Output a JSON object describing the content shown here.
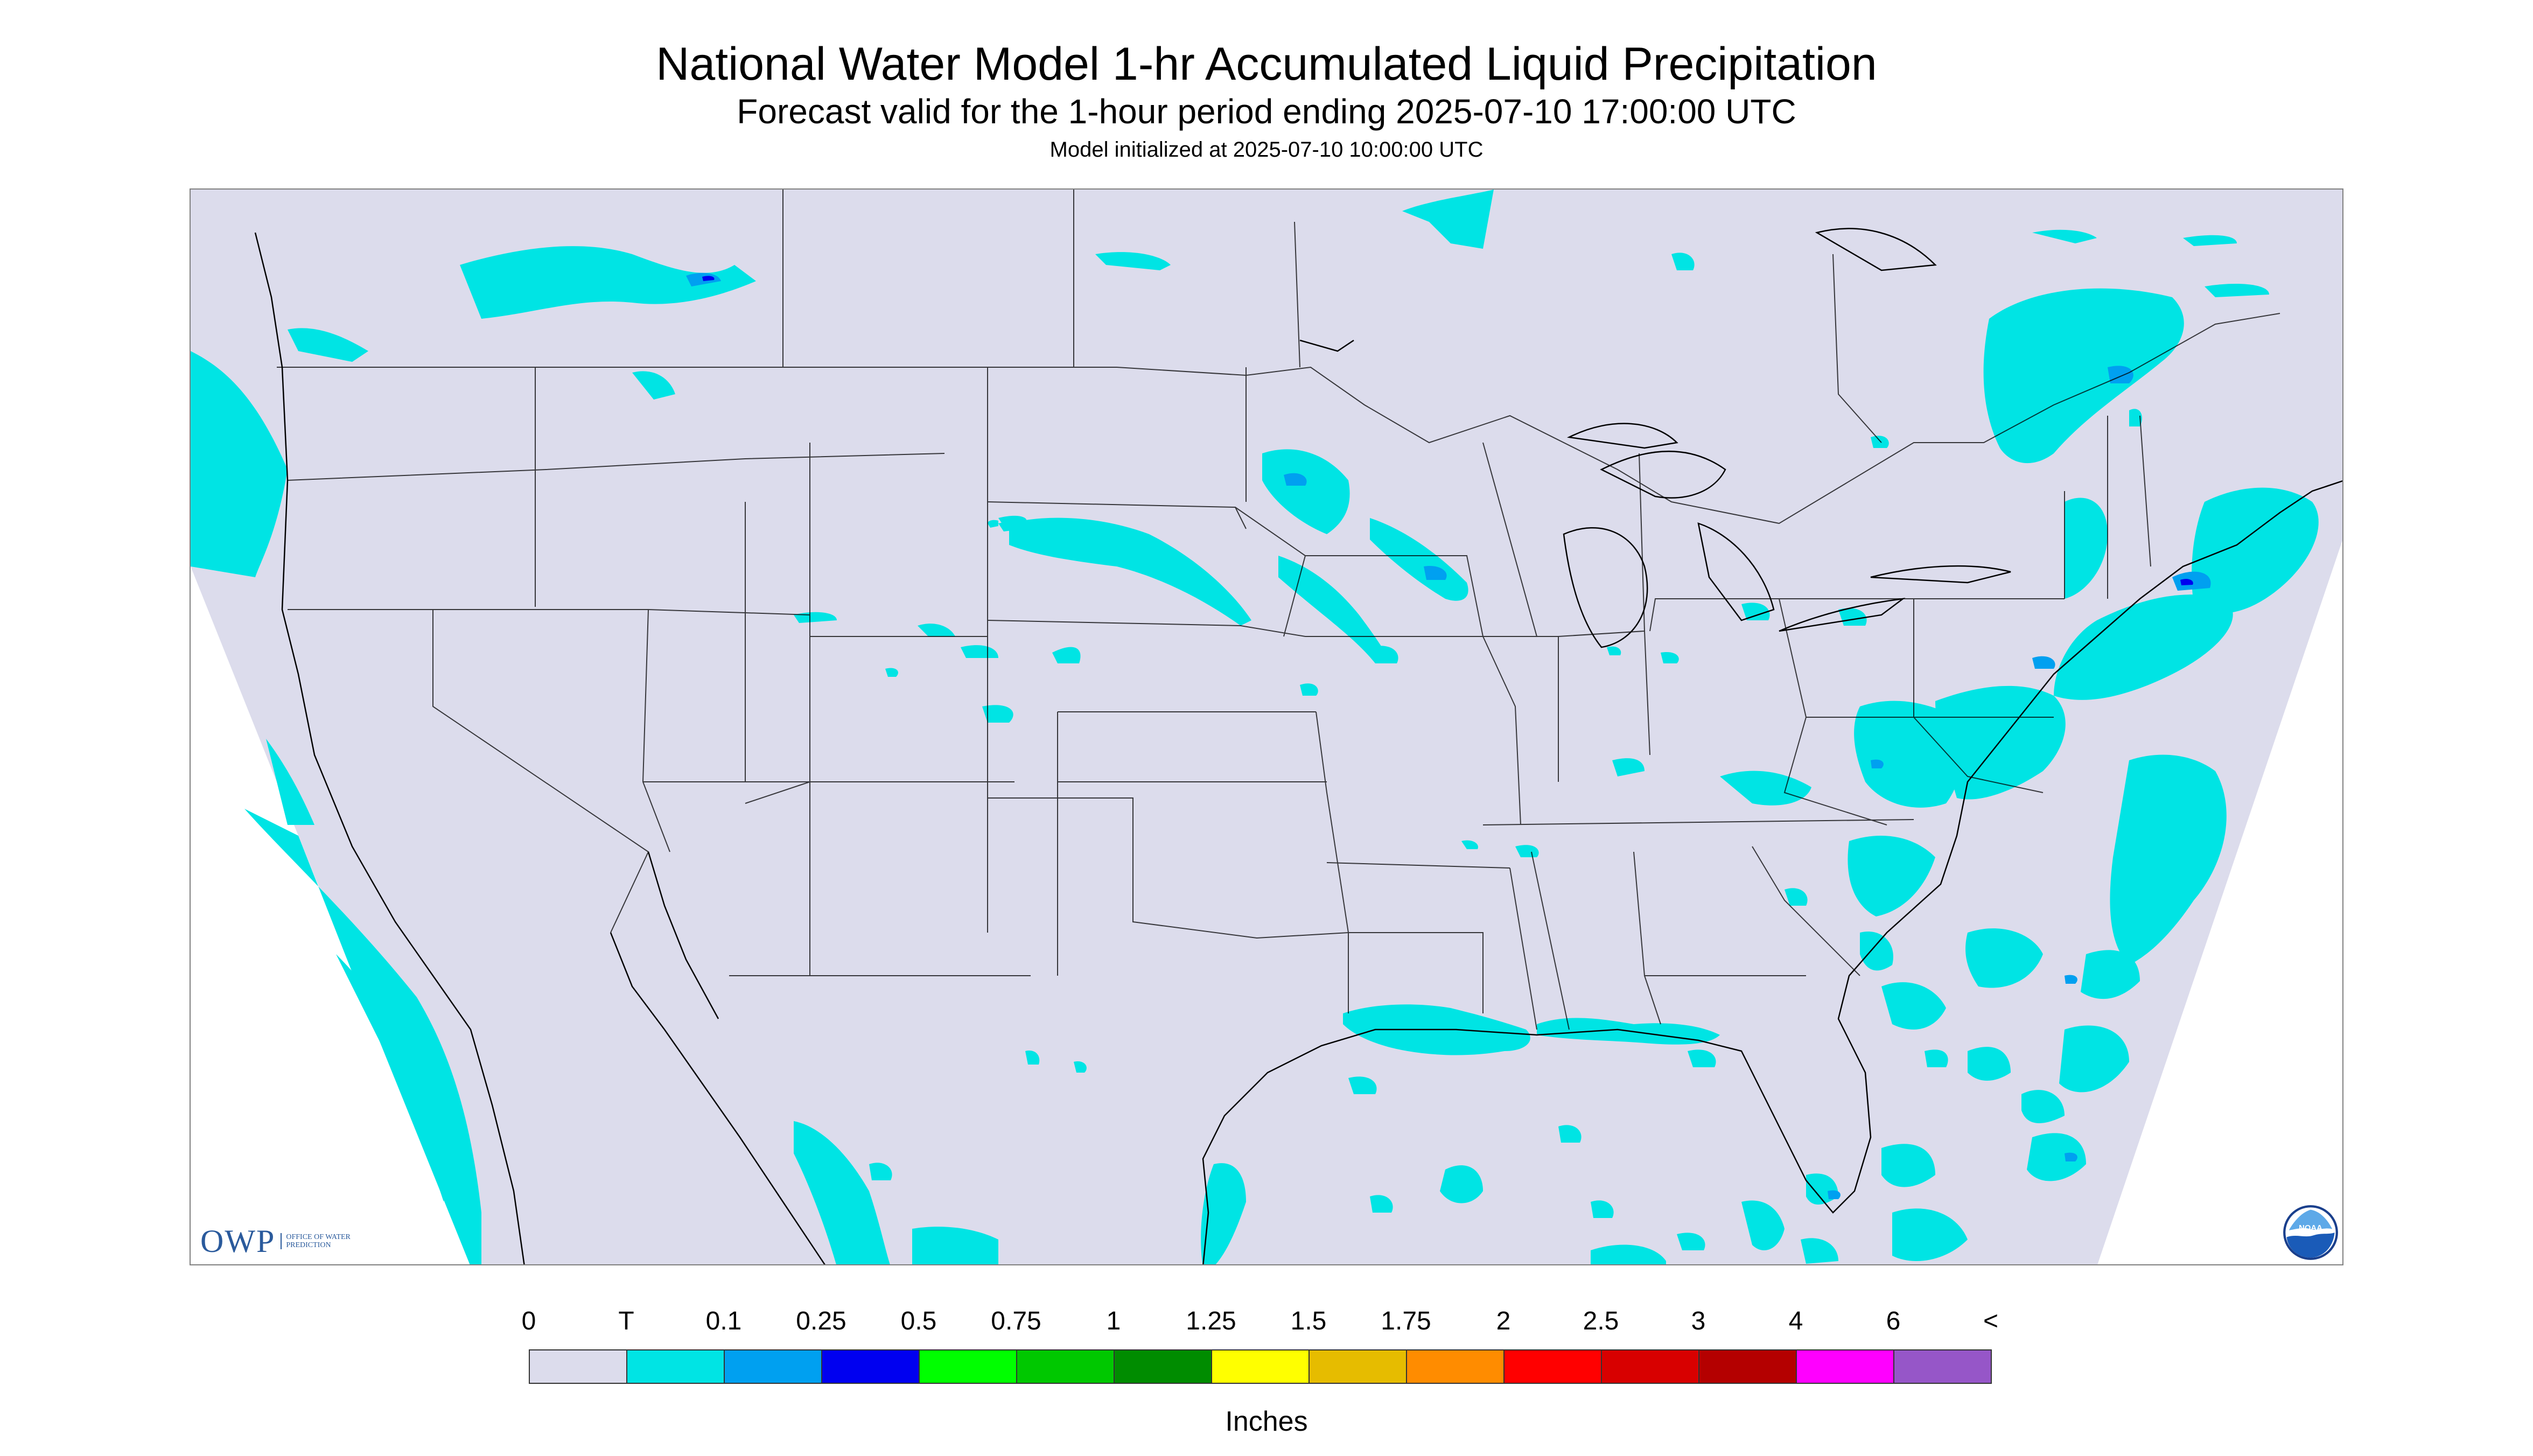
{
  "title": "National Water Model 1-hr Accumulated Liquid Precipitation",
  "subtitle": "Forecast valid for the 1-hour period ending 2025-07-10 17:00:00 UTC",
  "init_text": "Model initialized at 2025-07-10 10:00:00 UTC",
  "logos": {
    "owp_text": "OWP",
    "owp_sub": "OFFICE OF WATER PREDICTION",
    "noaa_text": "NOAA"
  },
  "legend": {
    "units": "Inches",
    "labels": [
      "0",
      "T",
      "0.1",
      "0.25",
      "0.5",
      "0.75",
      "1",
      "1.25",
      "1.5",
      "1.75",
      "2",
      "2.5",
      "3",
      "4",
      "6",
      "<"
    ],
    "colors": [
      "#dcdcec",
      "#00e4e4",
      "#00a0f0",
      "#0000f0",
      "#00ff00",
      "#00c800",
      "#008c00",
      "#ffff00",
      "#e6bc00",
      "#ff8c00",
      "#ff0000",
      "#d80000",
      "#b40000",
      "#ff00ff",
      "#9656c8"
    ]
  },
  "map_colors": {
    "background": "#dcdcec",
    "trace": "#00e4e4",
    "light": "#00a0f0",
    "moderate": "#0000f0",
    "boundary": "#000000"
  }
}
